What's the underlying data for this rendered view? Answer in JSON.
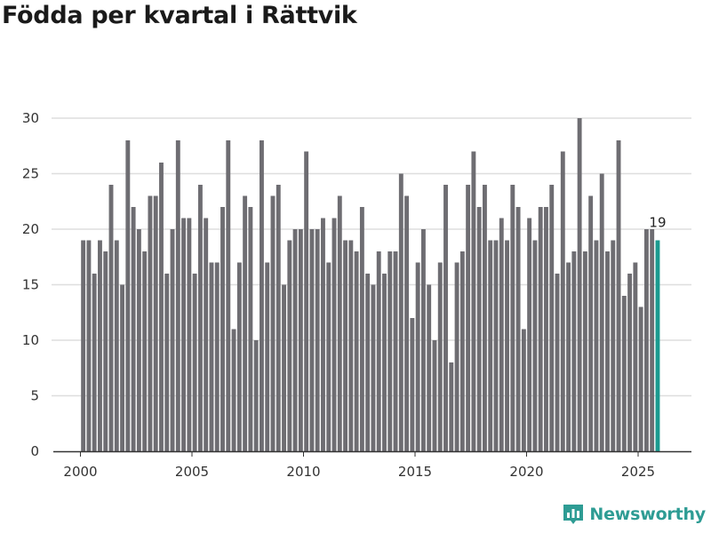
{
  "chart_data": {
    "type": "bar",
    "title": "Födda per kvartal i Rättvik",
    "xlabel": "",
    "ylabel": "",
    "ylim": [
      0,
      30
    ],
    "yticks": [
      0,
      5,
      10,
      15,
      20,
      25,
      30
    ],
    "xticks": [
      2000,
      2005,
      2010,
      2015,
      2020,
      2025
    ],
    "x_start": 2000,
    "periods_per_year": 4,
    "grid": true,
    "colors": {
      "bar": "#6e6d72",
      "highlight": "#1a9a8f",
      "grid": "#dedede",
      "axis": "#333333"
    },
    "highlight_last": true,
    "last_value_label": "19",
    "categories": [
      "2000K1",
      "2000K2",
      "2000K3",
      "2000K4",
      "2001K1",
      "2001K2",
      "2001K3",
      "2001K4",
      "2002K1",
      "2002K2",
      "2002K3",
      "2002K4",
      "2003K1",
      "2003K2",
      "2003K3",
      "2003K4",
      "2004K1",
      "2004K2",
      "2004K3",
      "2004K4",
      "2005K1",
      "2005K2",
      "2005K3",
      "2005K4",
      "2006K1",
      "2006K2",
      "2006K3",
      "2006K4",
      "2007K1",
      "2007K2",
      "2007K3",
      "2007K4",
      "2008K1",
      "2008K2",
      "2008K3",
      "2008K4",
      "2009K1",
      "2009K2",
      "2009K3",
      "2009K4",
      "2010K1",
      "2010K2",
      "2010K3",
      "2010K4",
      "2011K1",
      "2011K2",
      "2011K3",
      "2011K4",
      "2012K1",
      "2012K2",
      "2012K3",
      "2012K4",
      "2013K1",
      "2013K2",
      "2013K3",
      "2013K4",
      "2014K1",
      "2014K2",
      "2014K3",
      "2014K4",
      "2015K1",
      "2015K2",
      "2015K3",
      "2015K4",
      "2016K1",
      "2016K2",
      "2016K3",
      "2016K4",
      "2017K1",
      "2017K2",
      "2017K3",
      "2017K4",
      "2018K1",
      "2018K2",
      "2018K3",
      "2018K4",
      "2019K1",
      "2019K2",
      "2019K3",
      "2019K4",
      "2020K1",
      "2020K2",
      "2020K3",
      "2020K4",
      "2021K1",
      "2021K2",
      "2021K3",
      "2021K4",
      "2022K1",
      "2022K2",
      "2022K3",
      "2022K4",
      "2023K1",
      "2023K2",
      "2023K3",
      "2023K4",
      "2024K1",
      "2024K2",
      "2024K3",
      "2024K4",
      "2025K1",
      "2025K2",
      "2025K3",
      "2025K4"
    ],
    "values": [
      19,
      19,
      16,
      19,
      18,
      24,
      19,
      15,
      28,
      22,
      20,
      18,
      23,
      23,
      26,
      16,
      20,
      28,
      21,
      21,
      16,
      24,
      21,
      17,
      17,
      22,
      28,
      11,
      17,
      23,
      22,
      10,
      28,
      17,
      23,
      24,
      15,
      19,
      20,
      20,
      27,
      20,
      20,
      21,
      17,
      21,
      23,
      19,
      19,
      18,
      22,
      16,
      15,
      18,
      16,
      18,
      18,
      25,
      23,
      12,
      17,
      20,
      15,
      10,
      17,
      24,
      8,
      17,
      18,
      24,
      27,
      22,
      24,
      19,
      19,
      21,
      19,
      24,
      22,
      11,
      21,
      19,
      22,
      22,
      24,
      16,
      27,
      17,
      18,
      30,
      18,
      23,
      19,
      25,
      18,
      19,
      28,
      14,
      16,
      17,
      13,
      20,
      20,
      19
    ]
  },
  "brand": {
    "name": "Newsworthy",
    "icon": "newsworthy-logo-icon",
    "color": "#2e9c94"
  }
}
